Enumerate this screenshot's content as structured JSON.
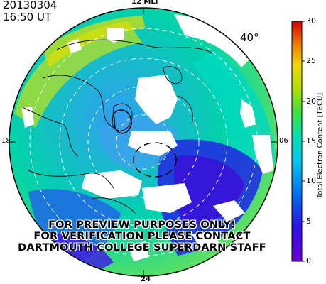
{
  "header": {
    "date": "20130304",
    "time": "16:50  UT",
    "latitude_label": "40°"
  },
  "mlt_labels": {
    "top": "12 MLT",
    "bottom": "24",
    "left": "18",
    "right": "06"
  },
  "watermark": {
    "line1": "FOR PREVIEW PURPOSES ONLY!",
    "line2": "FOR VERIFICATION PLEASE CONTACT",
    "line3": "DARTMOUTH COLLEGE SUPERDARN STAFF"
  },
  "colorbar": {
    "title": "Total Electron Content [TECU]",
    "ticks": [
      "0",
      "5",
      "10",
      "15",
      "20",
      "25",
      "30"
    ],
    "range": [
      0,
      30
    ]
  },
  "colors": {
    "low": "#7000d8",
    "mid": "#00e0c8",
    "high": "#d80000"
  }
}
